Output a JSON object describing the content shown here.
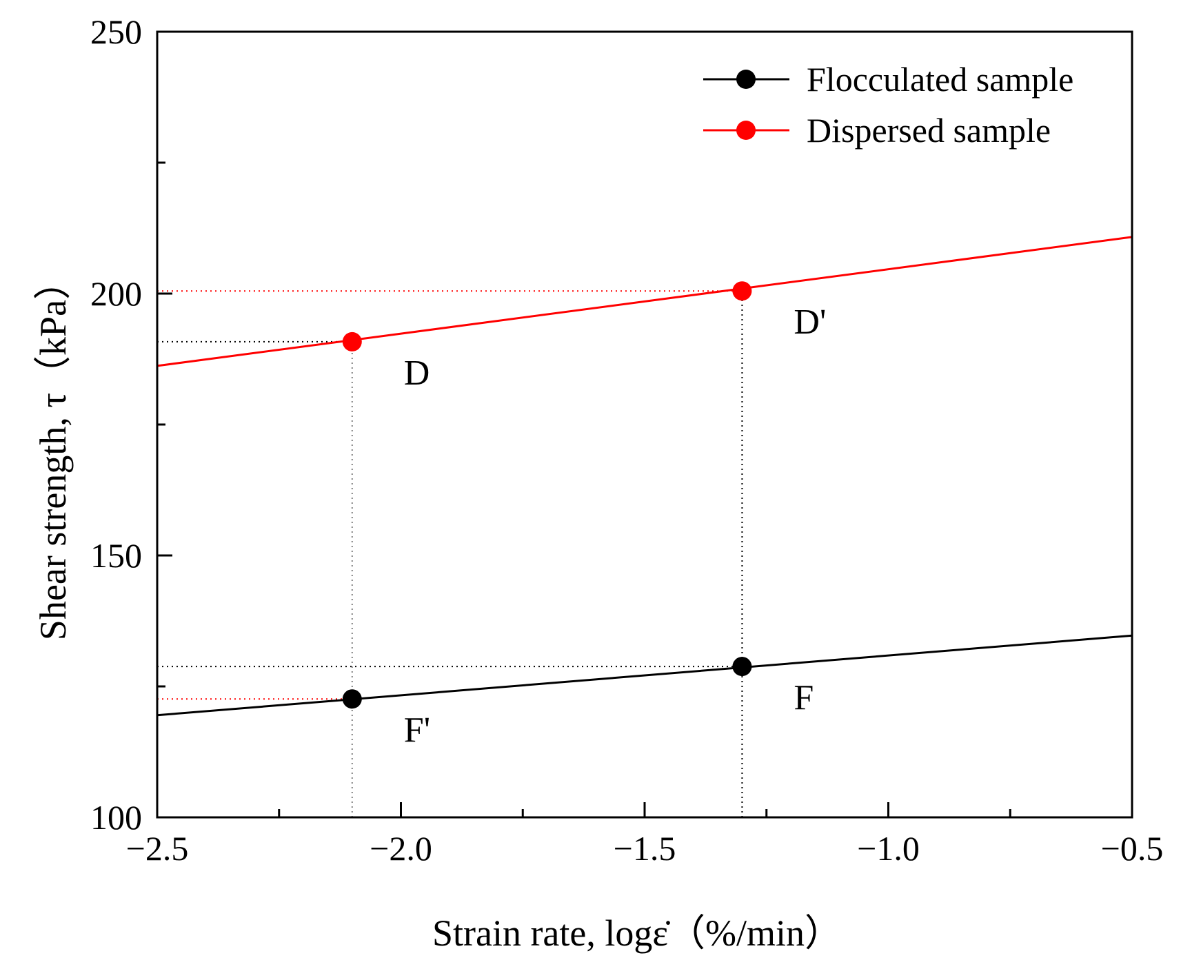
{
  "chart_data": {
    "type": "line",
    "title": "",
    "xlabel": "Strain rate,  logε̇（%/min）",
    "ylabel": "Shear strength,  τ（kPa）",
    "xlim": [
      -2.5,
      -0.5
    ],
    "ylim": [
      100,
      250
    ],
    "x_major_ticks": [
      -2.5,
      -2.0,
      -1.5,
      -1.0,
      -0.5
    ],
    "x_minor_ticks": [
      -2.25,
      -1.75,
      -1.25,
      -0.75
    ],
    "x_tick_labels": [
      "−2.5",
      "−2.0",
      "−1.5",
      "−1.0",
      "−0.5"
    ],
    "y_major_ticks": [
      100,
      150,
      200,
      250
    ],
    "y_minor_ticks": [
      125,
      175,
      225
    ],
    "y_tick_labels": [
      "100",
      "150",
      "200",
      "250"
    ],
    "legend_position": "top-right",
    "series": [
      {
        "name": "Flocculated sample",
        "color": "#000000",
        "line": [
          [
            -2.5,
            119.5
          ],
          [
            -0.5,
            134.7
          ]
        ],
        "points": [
          [
            -2.1,
            122.6
          ],
          [
            -1.3,
            128.8
          ]
        ],
        "point_labels": [
          "F'",
          "F"
        ]
      },
      {
        "name": "Dispersed sample",
        "color": "#ff0000",
        "line": [
          [
            -2.5,
            186.2
          ],
          [
            -0.5,
            210.8
          ]
        ],
        "points": [
          [
            -2.1,
            190.8
          ],
          [
            -1.3,
            200.5
          ]
        ],
        "point_labels": [
          "D",
          "D'"
        ]
      }
    ],
    "guide_lines": [
      {
        "kind": "h",
        "y": 200.5,
        "x_to": -1.3,
        "color": "#ff0000"
      },
      {
        "kind": "h",
        "y": 190.8,
        "x_to": -2.1,
        "color": "#000000"
      },
      {
        "kind": "h",
        "y": 128.8,
        "x_to": -1.3,
        "color": "#000000"
      },
      {
        "kind": "h",
        "y": 122.6,
        "x_to": -2.1,
        "color": "#ff0000"
      },
      {
        "kind": "v",
        "x": -2.1,
        "y_from": 100,
        "y_to": 190.8,
        "color": "#808080"
      },
      {
        "kind": "v",
        "x": -1.3,
        "y_from": 100,
        "y_to": 200.5,
        "color": "#000000"
      }
    ]
  }
}
